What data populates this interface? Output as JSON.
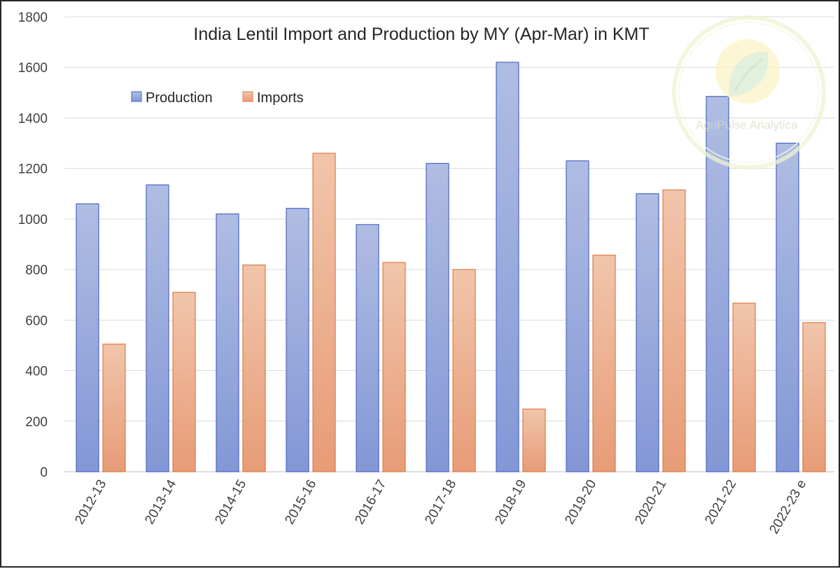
{
  "chart_data": {
    "type": "bar",
    "title": "India Lentil  Import and Production by MY (Apr-Mar) in KMT",
    "xlabel": "",
    "ylabel": "",
    "ylim": [
      0,
      1800
    ],
    "y_ticks": [
      "0",
      "200",
      "400",
      "600",
      "800",
      "1000",
      "1200",
      "1400",
      "1600",
      "1800"
    ],
    "categories": [
      "2012-13",
      "2013-14",
      "2014-15",
      "2015-16",
      "2016-17",
      "2017-18",
      "2018-19",
      "2019-20",
      "2020-21",
      "2021-22",
      "2022-23 e"
    ],
    "series": [
      {
        "name": "Production",
        "values": [
          1060,
          1135,
          1020,
          1042,
          978,
          1220,
          1620,
          1230,
          1100,
          1485,
          1300
        ]
      },
      {
        "name": "Imports",
        "values": [
          505,
          710,
          818,
          1260,
          828,
          800,
          248,
          857,
          1115,
          667,
          590
        ]
      }
    ],
    "grid": true,
    "legend_position": "top-left",
    "colors": {
      "production_top": "#b0bde2",
      "production_bottom": "#8397d6",
      "production_stroke": "#4a66c2",
      "imports_top": "#f1c5ab",
      "imports_bottom": "#e79c77",
      "imports_stroke": "#dd7c45",
      "grid": "#d9d9d9",
      "axis": "#bfbfbf"
    }
  },
  "watermark": {
    "text": "AgriPulse Analytica"
  }
}
